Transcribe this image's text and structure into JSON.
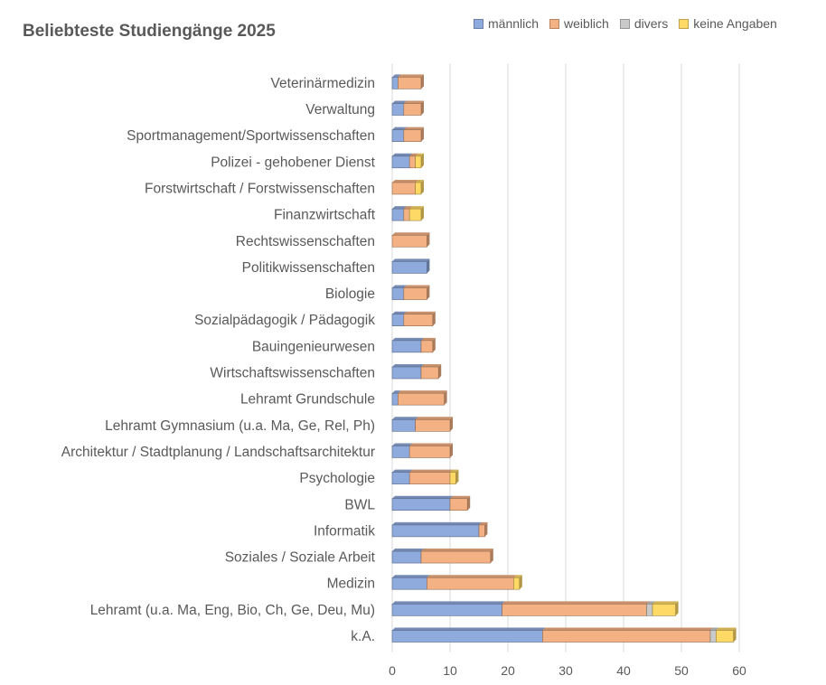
{
  "chart_data": {
    "type": "bar",
    "orientation": "horizontal",
    "stacked": true,
    "title": "Beliebteste Studiengänge 2025",
    "xlim": [
      0,
      60
    ],
    "xticks": [
      0,
      10,
      20,
      30,
      40,
      50,
      60
    ],
    "grid": "vertical",
    "legend_position": "top-right",
    "categories": [
      "k.A.",
      "Lehramt (u.a. Ma, Eng, Bio, Ch, Ge, Deu, Mu)",
      "Medizin",
      "Soziales / Soziale Arbeit",
      "Informatik",
      "BWL",
      "Psychologie",
      "Architektur / Stadtplanung / Landschaftsarchitektur",
      "Lehramt Gymnasium (u.a. Ma, Ge, Rel, Ph)",
      "Lehramt Grundschule",
      "Wirtschaftswissenschaften",
      "Bauingenieurwesen",
      "Sozialpädagogik / Pädagogik",
      "Biologie",
      "Politikwissenschaften",
      "Rechtswissenschaften",
      "Finanzwirtschaft",
      "Forstwirtschaft / Forstwissenschaften",
      "Polizei - gehobener Dienst",
      "Sportmanagement/Sportwissenschaften",
      "Verwaltung",
      "Veterinärmedizin"
    ],
    "series": [
      {
        "name": "männlich",
        "color": "#8faadc",
        "values": [
          26,
          19,
          6,
          5,
          15,
          10,
          3,
          3,
          4,
          1,
          5,
          5,
          2,
          2,
          6,
          0,
          2,
          0,
          3,
          2,
          2,
          1
        ]
      },
      {
        "name": "weiblich",
        "color": "#f4b183",
        "values": [
          29,
          25,
          15,
          12,
          1,
          3,
          7,
          7,
          6,
          8,
          3,
          2,
          5,
          4,
          0,
          6,
          1,
          4,
          1,
          3,
          3,
          4
        ]
      },
      {
        "name": "divers",
        "color": "#c9c9c9",
        "values": [
          1,
          1,
          0,
          0,
          0,
          0,
          0,
          0,
          0,
          0,
          0,
          0,
          0,
          0,
          0,
          0,
          0,
          0,
          0,
          0,
          0,
          0
        ]
      },
      {
        "name": "keine Angaben",
        "color": "#ffd966",
        "values": [
          3,
          4,
          1,
          0,
          0,
          0,
          1,
          0,
          0,
          0,
          0,
          0,
          0,
          0,
          0,
          0,
          2,
          1,
          1,
          0,
          0,
          0
        ]
      }
    ]
  }
}
